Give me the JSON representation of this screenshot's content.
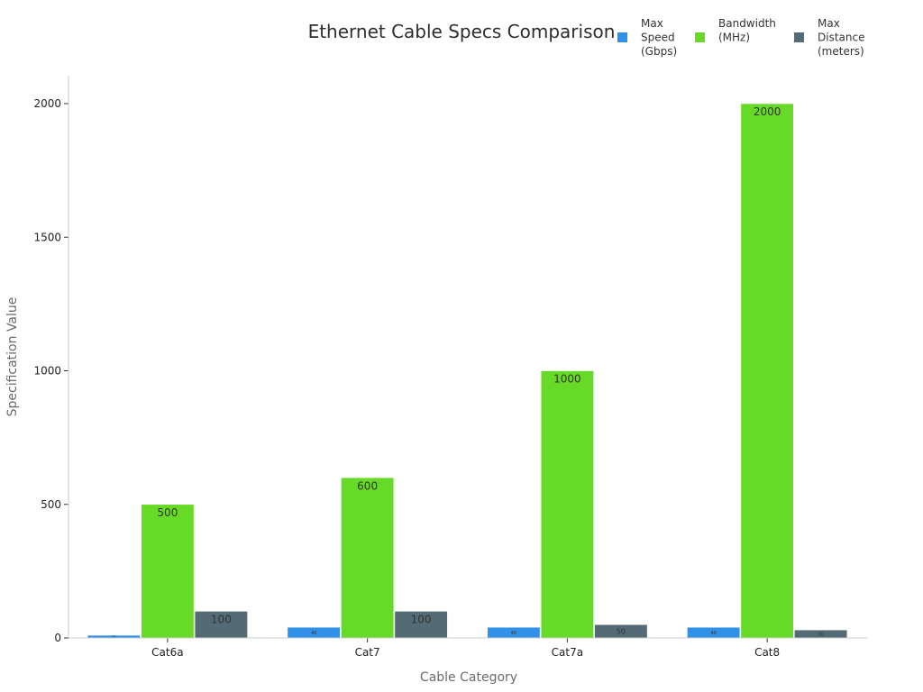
{
  "chart_data": {
    "type": "bar",
    "title": "Ethernet Cable Specs Comparison",
    "xlabel": "Cable Category",
    "ylabel": "Specification Value",
    "categories": [
      "Cat6a",
      "Cat7",
      "Cat7a",
      "Cat8"
    ],
    "series": [
      {
        "name": "Max Speed (Gbps)",
        "values": [
          10,
          40,
          40,
          40
        ],
        "color": "#3191e8"
      },
      {
        "name": "Bandwidth (MHz)",
        "values": [
          500,
          600,
          1000,
          2000
        ],
        "color": "#67da28"
      },
      {
        "name": "Max Distance (meters)",
        "values": [
          100,
          100,
          50,
          30
        ],
        "color": "#546b76"
      }
    ],
    "ylim": [
      0,
      2100
    ],
    "yticks": [
      0,
      500,
      1000,
      1500,
      2000
    ],
    "grid": false,
    "legend_position": "top-right",
    "legend_lines": [
      [
        "Max",
        "Speed",
        "(Gbps)"
      ],
      [
        "Bandwidth",
        "(MHz)"
      ],
      [
        "Max",
        "Distance",
        "(meters)"
      ]
    ]
  }
}
